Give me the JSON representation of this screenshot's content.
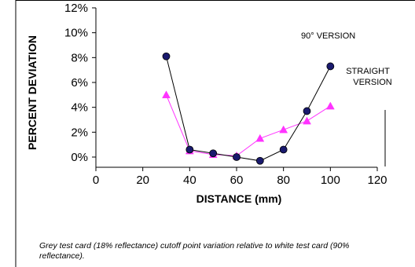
{
  "chart_data": {
    "type": "line",
    "xlabel": "DISTANCE (mm)",
    "ylabel": "PERCENT DEVIATION",
    "xlim": [
      0,
      120
    ],
    "ylim": [
      0,
      12
    ],
    "x_ticks": [
      "0",
      "20",
      "40",
      "60",
      "80",
      "100",
      "120"
    ],
    "y_ticks": [
      "0%",
      "2%",
      "4%",
      "6%",
      "8%",
      "10%",
      "12%"
    ],
    "grid": false,
    "legend": "none",
    "annotations": [
      "90° VERSION",
      "STRAIGHT",
      "VERSION"
    ],
    "series": [
      {
        "label": "90° VERSION",
        "marker": "circle",
        "color": "#1a1a6e",
        "line_color": "#000000",
        "x": [
          30,
          40,
          50,
          60,
          70,
          80,
          90,
          100
        ],
        "y": [
          8.1,
          0.6,
          0.3,
          0.0,
          -0.3,
          0.6,
          3.7,
          7.3
        ]
      },
      {
        "label": "STRAIGHT VERSION",
        "marker": "triangle",
        "color": "#ff33ff",
        "line_color": "#ff33ff",
        "x": [
          30,
          40,
          50,
          60,
          70,
          80,
          90,
          100
        ],
        "y": [
          5.0,
          0.5,
          0.2,
          0.1,
          1.5,
          2.2,
          2.9,
          4.1
        ]
      }
    ]
  },
  "caption": "Grey test card (18% reflectance) cutoff point variation relative to white test card (90% reflectance)."
}
